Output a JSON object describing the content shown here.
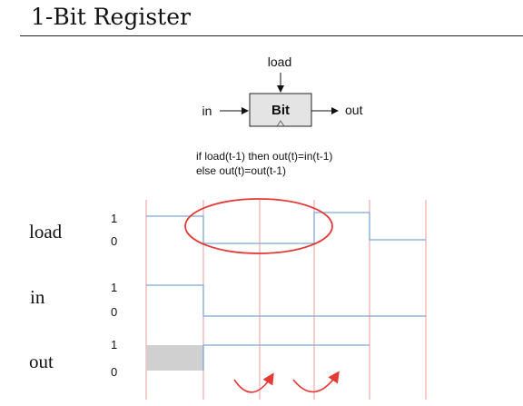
{
  "title": "1-Bit Register",
  "chip": {
    "name": "Bit",
    "input_label": "in",
    "load_label": "load",
    "output_label": "out"
  },
  "spec": {
    "line1": "if load(t-1) then out(t)=in(t-1)",
    "line2": "else out(t)=out(t-1)"
  },
  "timing": {
    "signals": [
      {
        "name": "load",
        "high_label": "1",
        "low_label": "0"
      },
      {
        "name": "in",
        "high_label": "1",
        "low_label": "0"
      },
      {
        "name": "out",
        "high_label": "1",
        "low_label": "0"
      }
    ],
    "colors": {
      "signal": "#7ea6d8",
      "clock_line": "#ef9a9a",
      "annotation": "#e53935",
      "unknown_fill": "#d0d0d0"
    }
  }
}
